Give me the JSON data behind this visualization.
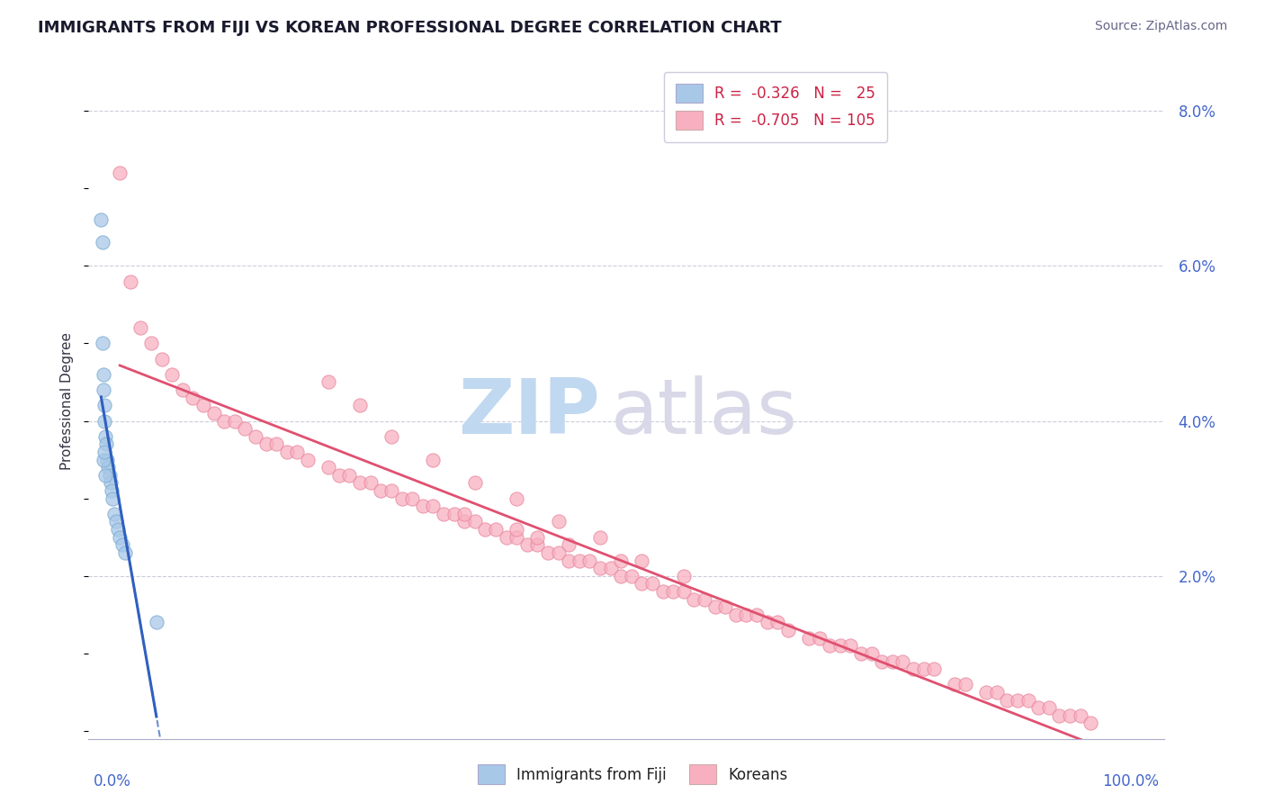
{
  "title": "IMMIGRANTS FROM FIJI VS KOREAN PROFESSIONAL DEGREE CORRELATION CHART",
  "source": "Source: ZipAtlas.com",
  "ylabel": "Professional Degree",
  "legend_fiji": "Immigrants from Fiji",
  "legend_korean": "Koreans",
  "fiji_R": "-0.326",
  "fiji_N": "25",
  "korean_R": "-0.705",
  "korean_N": "105",
  "fiji_color": "#a8c8e8",
  "korean_color": "#f8b0c0",
  "fiji_line_color": "#3060c0",
  "korean_line_color": "#e05070",
  "fiji_edge_color": "#7aaad0",
  "korean_edge_color": "#e888a0",
  "title_color": "#1a1a2e",
  "source_color": "#666688",
  "label_color": "#4466cc",
  "ylabel_color": "#333344",
  "watermark_zip_color": "#c0d8f0",
  "watermark_atlas_color": "#d8d8e8",
  "grid_color": "#ccccdd",
  "axis_color": "#aaaacc",
  "fiji_points_x": [
    0.2,
    0.3,
    0.3,
    0.4,
    0.4,
    0.5,
    0.5,
    0.6,
    0.7,
    0.8,
    0.9,
    1.0,
    1.1,
    1.2,
    1.3,
    1.5,
    1.6,
    1.8,
    2.0,
    2.2,
    2.5,
    0.4,
    0.5,
    0.6,
    5.5
  ],
  "fiji_points_y": [
    6.6,
    6.3,
    5.0,
    4.6,
    4.4,
    4.2,
    4.0,
    3.8,
    3.7,
    3.5,
    3.4,
    3.3,
    3.2,
    3.1,
    3.0,
    2.8,
    2.7,
    2.6,
    2.5,
    2.4,
    2.3,
    3.5,
    3.6,
    3.3,
    1.4
  ],
  "korean_points_x": [
    2,
    3,
    4,
    5,
    6,
    7,
    8,
    9,
    10,
    11,
    12,
    13,
    14,
    15,
    16,
    17,
    18,
    19,
    20,
    22,
    23,
    24,
    25,
    26,
    27,
    28,
    29,
    30,
    31,
    32,
    33,
    34,
    35,
    36,
    37,
    38,
    39,
    40,
    41,
    42,
    43,
    44,
    45,
    46,
    47,
    48,
    49,
    50,
    51,
    52,
    53,
    54,
    55,
    56,
    57,
    58,
    59,
    60,
    61,
    62,
    63,
    64,
    65,
    66,
    68,
    69,
    70,
    71,
    72,
    73,
    74,
    75,
    76,
    77,
    78,
    79,
    80,
    82,
    83,
    85,
    86,
    87,
    88,
    89,
    90,
    91,
    92,
    93,
    94,
    95,
    35,
    40,
    42,
    45,
    50,
    22,
    25,
    28,
    32,
    36,
    40,
    44,
    48,
    52,
    56
  ],
  "korean_points_y": [
    7.2,
    5.8,
    5.2,
    5.0,
    4.8,
    4.6,
    4.4,
    4.3,
    4.2,
    4.1,
    4.0,
    4.0,
    3.9,
    3.8,
    3.7,
    3.7,
    3.6,
    3.6,
    3.5,
    3.4,
    3.3,
    3.3,
    3.2,
    3.2,
    3.1,
    3.1,
    3.0,
    3.0,
    2.9,
    2.9,
    2.8,
    2.8,
    2.7,
    2.7,
    2.6,
    2.6,
    2.5,
    2.5,
    2.4,
    2.4,
    2.3,
    2.3,
    2.2,
    2.2,
    2.2,
    2.1,
    2.1,
    2.0,
    2.0,
    1.9,
    1.9,
    1.8,
    1.8,
    1.8,
    1.7,
    1.7,
    1.6,
    1.6,
    1.5,
    1.5,
    1.5,
    1.4,
    1.4,
    1.3,
    1.2,
    1.2,
    1.1,
    1.1,
    1.1,
    1.0,
    1.0,
    0.9,
    0.9,
    0.9,
    0.8,
    0.8,
    0.8,
    0.6,
    0.6,
    0.5,
    0.5,
    0.4,
    0.4,
    0.4,
    0.3,
    0.3,
    0.2,
    0.2,
    0.2,
    0.1,
    2.8,
    2.6,
    2.5,
    2.4,
    2.2,
    4.5,
    4.2,
    3.8,
    3.5,
    3.2,
    3.0,
    2.7,
    2.5,
    2.2,
    2.0
  ]
}
